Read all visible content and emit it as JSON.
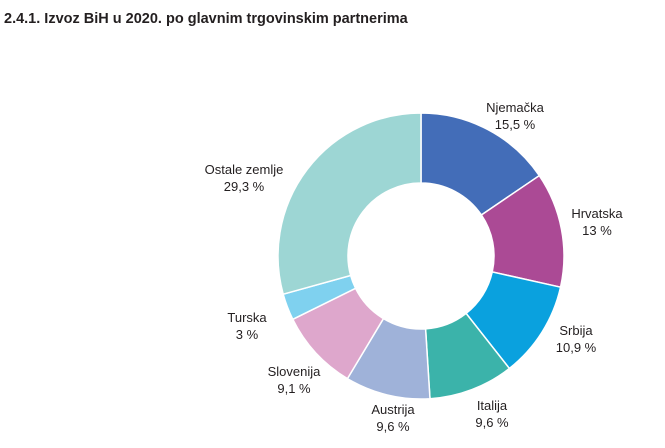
{
  "chart_data": {
    "type": "pie",
    "variant": "donut",
    "title": "2.4.1. Izvoz BiH u 2020. po glavnim trgovinskim partnerima",
    "legend": "none",
    "slices": [
      {
        "label": "Njemačka",
        "value": 15.5,
        "value_label": "15,5 %",
        "color": "#436db8"
      },
      {
        "label": "Hrvatska",
        "value": 13.0,
        "value_label": "13 %",
        "color": "#ab4a95"
      },
      {
        "label": "Srbija",
        "value": 10.9,
        "value_label": "10,9 %",
        "color": "#0aa1de"
      },
      {
        "label": "Italija",
        "value": 9.6,
        "value_label": "9,6 %",
        "color": "#3bb3aa"
      },
      {
        "label": "Austrija",
        "value": 9.6,
        "value_label": "9,6 %",
        "color": "#9fb2d9"
      },
      {
        "label": "Slovenija",
        "value": 9.1,
        "value_label": "9,1 %",
        "color": "#dea7cc"
      },
      {
        "label": "Turska",
        "value": 3.0,
        "value_label": "3 %",
        "color": "#7fd1ef"
      },
      {
        "label": "Ostale zemlje",
        "value": 29.3,
        "value_label": "29,3 %",
        "color": "#9dd6d4"
      }
    ]
  }
}
